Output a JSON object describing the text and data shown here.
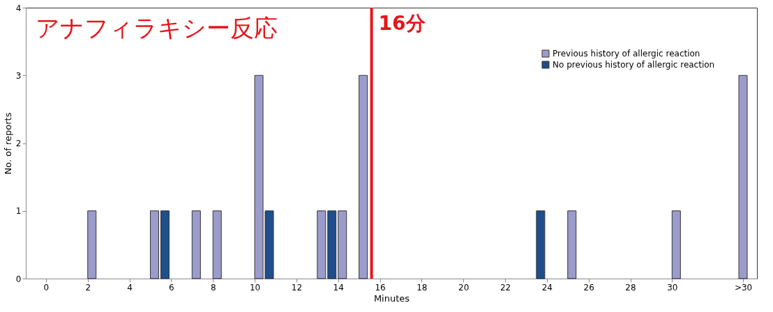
{
  "chart_data": {
    "type": "bar",
    "xlabel": "Minutes",
    "ylabel": "No. of reports",
    "annotations": [
      "アナフィラキシー反応"
    ],
    "series": [
      {
        "name": "Previous history of allergic reaction",
        "color": "#9b9ccb",
        "x": [
          2.2,
          5.2,
          7.2,
          8.2,
          10.2,
          13.2,
          14.2,
          15.2,
          25.2,
          30.2,
          33.4
        ],
        "values": [
          1,
          1,
          1,
          1,
          3,
          1,
          1,
          3,
          1,
          1,
          3
        ]
      },
      {
        "name": "No previous history of allergic reaction",
        "color": "#1f4e8c",
        "x": [
          5.7,
          10.7,
          13.7,
          23.7
        ],
        "values": [
          1,
          1,
          1,
          1
        ]
      }
    ],
    "xlim": [
      -0.8,
      33.9
    ],
    "xticks": [
      0,
      2,
      4,
      6,
      8,
      10,
      12,
      14,
      16,
      18,
      20,
      22,
      24,
      26,
      28,
      30,
      {
        "value": 33.4,
        "label": ">30"
      }
    ],
    "ylim": [
      0,
      4
    ],
    "yticks": [
      0,
      1,
      2,
      3,
      4
    ],
    "ref_lines": [
      {
        "axis": "x",
        "value": 15.6,
        "label": "16分",
        "color": "#e8141b"
      }
    ],
    "grid": false,
    "legend": "top right"
  }
}
